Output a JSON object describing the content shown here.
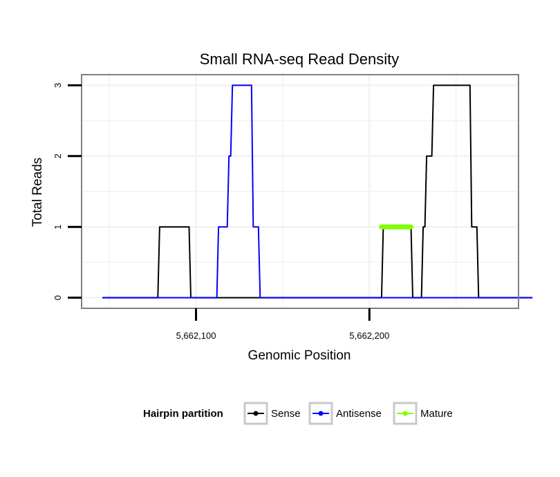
{
  "chart_data": {
    "type": "line",
    "title": "Small RNA-seq Read Density",
    "xlabel": "Genomic Position",
    "ylabel": "Total Reads",
    "xlim": [
      5662034,
      5662286
    ],
    "ylim": [
      -0.15,
      3.15
    ],
    "x_ticks": [
      5662100,
      5662200
    ],
    "x_tick_labels": [
      "5,662,100",
      "5,662,200"
    ],
    "y_ticks": [
      0,
      1,
      2,
      3
    ],
    "y_tick_labels": [
      "0",
      "1",
      "2",
      "3"
    ],
    "grid": true,
    "legend": {
      "title": "Hairpin partition",
      "position": "bottom",
      "entries": [
        "Sense",
        "Antisense",
        "Mature"
      ]
    },
    "series": [
      {
        "name": "Sense",
        "color": "#000000",
        "x": [
          5662046,
          5662078,
          5662079,
          5662096,
          5662097,
          5662207,
          5662208,
          5662224,
          5662225,
          5662230,
          5662231,
          5662232,
          5662233,
          5662236,
          5662237,
          5662240,
          5662241,
          5662258,
          5662259,
          5662262,
          5662263,
          5662294
        ],
        "y": [
          0,
          0,
          1,
          1,
          0,
          0,
          1,
          1,
          0,
          0,
          1,
          1,
          2,
          2,
          3,
          3,
          3,
          3,
          1,
          1,
          0,
          0
        ]
      },
      {
        "name": "Antisense",
        "color": "#0000ff",
        "x": [
          5662046,
          5662112,
          5662113,
          5662118,
          5662119,
          5662120,
          5662121,
          5662132,
          5662133,
          5662136,
          5662137,
          5662294
        ],
        "y": [
          0,
          0,
          1,
          1,
          2,
          2,
          3,
          3,
          1,
          1,
          0,
          0
        ]
      },
      {
        "name": "Mature",
        "color": "#7fff00",
        "x": [
          5662207,
          5662224
        ],
        "y": [
          1,
          1
        ]
      }
    ]
  }
}
